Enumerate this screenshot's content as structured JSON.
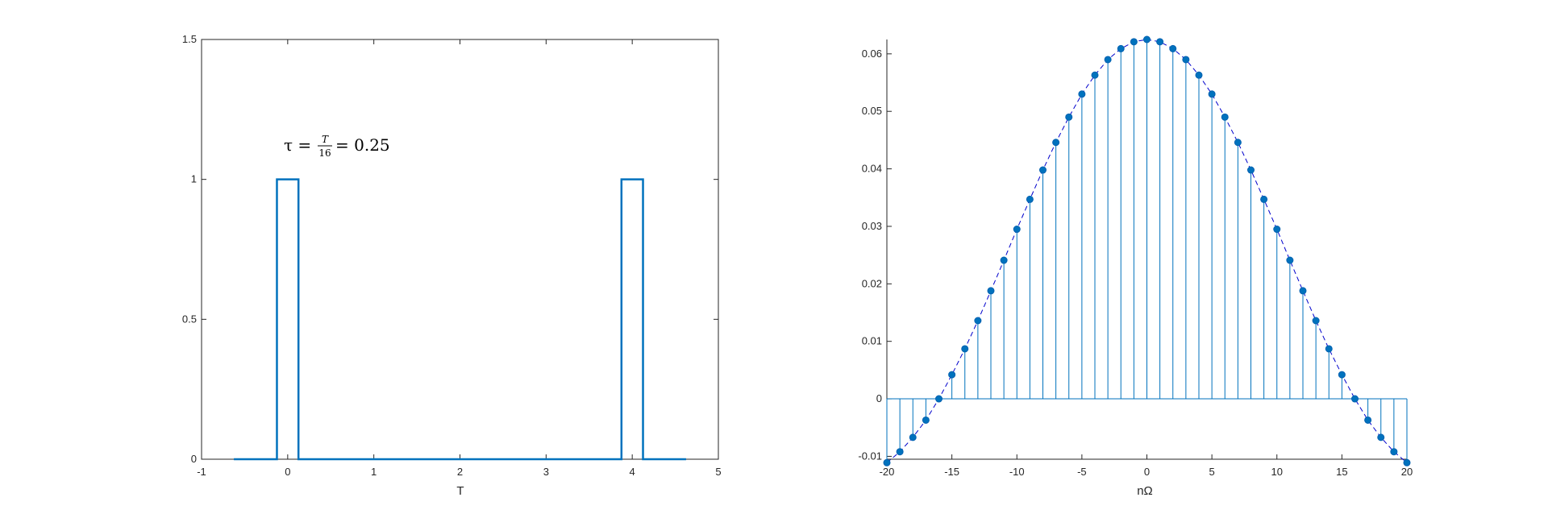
{
  "chart_data": [
    {
      "type": "line",
      "xlabel": "T",
      "ylabel": "",
      "xlim": [
        -1,
        5
      ],
      "ylim": [
        0,
        1.5
      ],
      "xticks": [
        "-1",
        "0",
        "1",
        "2",
        "3",
        "4",
        "5"
      ],
      "yticks": [
        "0",
        "0.5",
        "1",
        "1.5"
      ],
      "series": [
        {
          "x": [
            -0.625,
            -0.125,
            -0.125,
            0.125,
            0.125,
            3.875,
            3.875,
            4.125,
            4.125,
            4.625
          ],
          "y": [
            0,
            0,
            1,
            1,
            0,
            0,
            1,
            1,
            0,
            0
          ]
        }
      ],
      "annotation": {
        "lhs": "τ =",
        "frac_num": "T",
        "frac_den": "16",
        "rhs": "= 0.25"
      },
      "color": "#0072BD",
      "grid": false
    },
    {
      "type": "stem",
      "xlabel": "nΩ",
      "ylabel": "",
      "xlim": [
        -20,
        20
      ],
      "ylim": [
        -0.0105,
        0.0625
      ],
      "xticks": [
        "-20",
        "-15",
        "-10",
        "-5",
        "0",
        "5",
        "10",
        "15",
        "20"
      ],
      "yticks": [
        "-0.01",
        "0",
        "0.01",
        "0.02",
        "0.03",
        "0.04",
        "0.05",
        "0.06"
      ],
      "x": [
        -20,
        -19,
        -18,
        -17,
        -16,
        -15,
        -14,
        -13,
        -12,
        -11,
        -10,
        -9,
        -8,
        -7,
        -6,
        -5,
        -4,
        -3,
        -2,
        -1,
        0,
        1,
        2,
        3,
        4,
        5,
        6,
        7,
        8,
        9,
        10,
        11,
        12,
        13,
        14,
        15,
        16,
        17,
        18,
        19,
        20
      ],
      "values": [
        -0.0111,
        -0.0092,
        -0.0067,
        -0.0037,
        0.0,
        0.0042,
        0.0087,
        0.0136,
        0.0188,
        0.0241,
        0.0295,
        0.0347,
        0.0398,
        0.0446,
        0.049,
        0.053,
        0.0563,
        0.059,
        0.0609,
        0.0621,
        0.0625,
        0.0621,
        0.0609,
        0.059,
        0.0563,
        0.053,
        0.049,
        0.0446,
        0.0398,
        0.0347,
        0.0295,
        0.0241,
        0.0188,
        0.0136,
        0.0087,
        0.0042,
        0.0,
        -0.0037,
        -0.0067,
        -0.0092,
        -0.0111
      ],
      "envelope": "dashed",
      "color": "#0072BD",
      "grid": false
    }
  ]
}
